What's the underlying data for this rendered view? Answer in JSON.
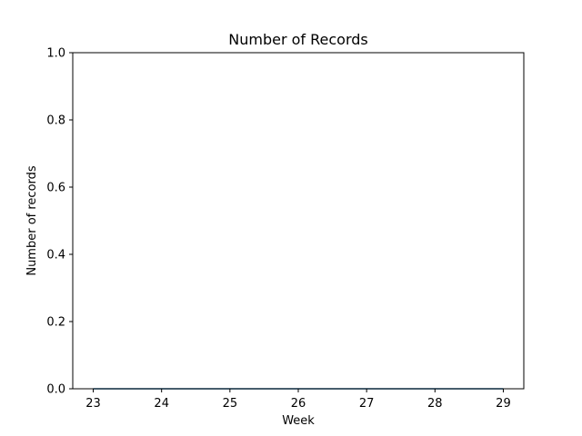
{
  "chart_data": {
    "type": "line",
    "title": "Number of Records",
    "xlabel": "Week",
    "ylabel": "Number of records",
    "x": [
      23,
      24,
      25,
      26,
      27,
      28,
      29
    ],
    "series": [
      {
        "values": [
          0,
          0,
          0,
          0,
          0,
          0,
          0
        ]
      }
    ],
    "xlim": [
      22.7,
      29.3
    ],
    "ylim": [
      0,
      1
    ],
    "xticks": [
      "23",
      "24",
      "25",
      "26",
      "27",
      "28",
      "29"
    ],
    "yticks": [
      "0.0",
      "0.2",
      "0.4",
      "0.6",
      "0.8",
      "1.0"
    ],
    "grid": false,
    "colors": {
      "line": "#1f77b4",
      "axis": "#000000",
      "background": "#ffffff"
    }
  }
}
